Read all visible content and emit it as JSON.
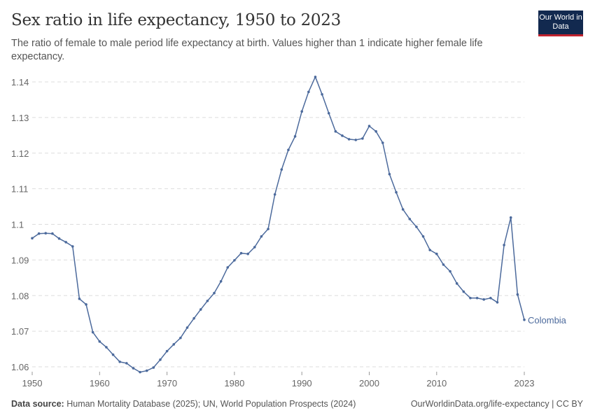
{
  "header": {
    "title": "Sex ratio in life expectancy, 1950 to 2023",
    "subtitle": "The ratio of female to male period life expectancy at birth. Values higher than 1 indicate higher female life expectancy.",
    "logo_text": "Our World in Data"
  },
  "footer": {
    "source_label": "Data source:",
    "source": "Human Mortality Database (2025); UN, World Population Prospects (2024)",
    "link": "OurWorldinData.org/life-expectancy | CC BY"
  },
  "chart_data": {
    "type": "line",
    "title": "Sex ratio in life expectancy, 1950 to 2023",
    "xlim": [
      1950,
      2023
    ],
    "ylim": [
      1.06,
      1.14
    ],
    "x_ticks": [
      "1950",
      "1960",
      "1970",
      "1980",
      "1990",
      "2000",
      "2010",
      "2023"
    ],
    "y_ticks": [
      "1.06",
      "1.07",
      "1.08",
      "1.09",
      "1.1",
      "1.11",
      "1.12",
      "1.13",
      "1.14"
    ],
    "grid": "horizontal dashed",
    "colors": {
      "series": "#4c6a9c"
    },
    "series": [
      {
        "name": "Colombia",
        "x": [
          1950,
          1951,
          1952,
          1953,
          1954,
          1955,
          1956,
          1957,
          1958,
          1959,
          1960,
          1961,
          1962,
          1963,
          1964,
          1965,
          1966,
          1967,
          1968,
          1969,
          1970,
          1971,
          1972,
          1973,
          1974,
          1975,
          1976,
          1977,
          1978,
          1979,
          1980,
          1981,
          1982,
          1983,
          1984,
          1985,
          1986,
          1987,
          1988,
          1989,
          1990,
          1991,
          1992,
          1993,
          1994,
          1995,
          1996,
          1997,
          1998,
          1999,
          2000,
          2001,
          2002,
          2003,
          2004,
          2005,
          2006,
          2007,
          2008,
          2009,
          2010,
          2011,
          2012,
          2013,
          2014,
          2015,
          2016,
          2017,
          2018,
          2019,
          2020,
          2021,
          2022,
          2023
        ],
        "values": [
          1.0961,
          1.0974,
          1.0975,
          1.0974,
          1.096,
          1.095,
          1.0938,
          1.0791,
          1.0775,
          1.0697,
          1.0671,
          1.0655,
          1.0634,
          1.0614,
          1.061,
          1.0596,
          1.0585,
          1.0589,
          1.0598,
          1.062,
          1.0644,
          1.0663,
          1.0681,
          1.071,
          1.0736,
          1.0761,
          1.0785,
          1.0807,
          1.084,
          1.0879,
          1.0899,
          1.0919,
          1.0917,
          1.0936,
          1.0966,
          1.0987,
          1.1084,
          1.1154,
          1.1209,
          1.1247,
          1.1317,
          1.1372,
          1.1414,
          1.1365,
          1.1312,
          1.1261,
          1.1249,
          1.1239,
          1.1237,
          1.1241,
          1.1276,
          1.1261,
          1.1229,
          1.1141,
          1.109,
          1.1042,
          1.1015,
          1.0993,
          1.0966,
          1.0928,
          1.0917,
          1.0887,
          1.0868,
          1.0834,
          1.0811,
          1.0793,
          1.0793,
          1.0789,
          1.0793,
          1.0781,
          1.0942,
          1.1019,
          1.0803,
          1.0732
        ]
      }
    ]
  }
}
